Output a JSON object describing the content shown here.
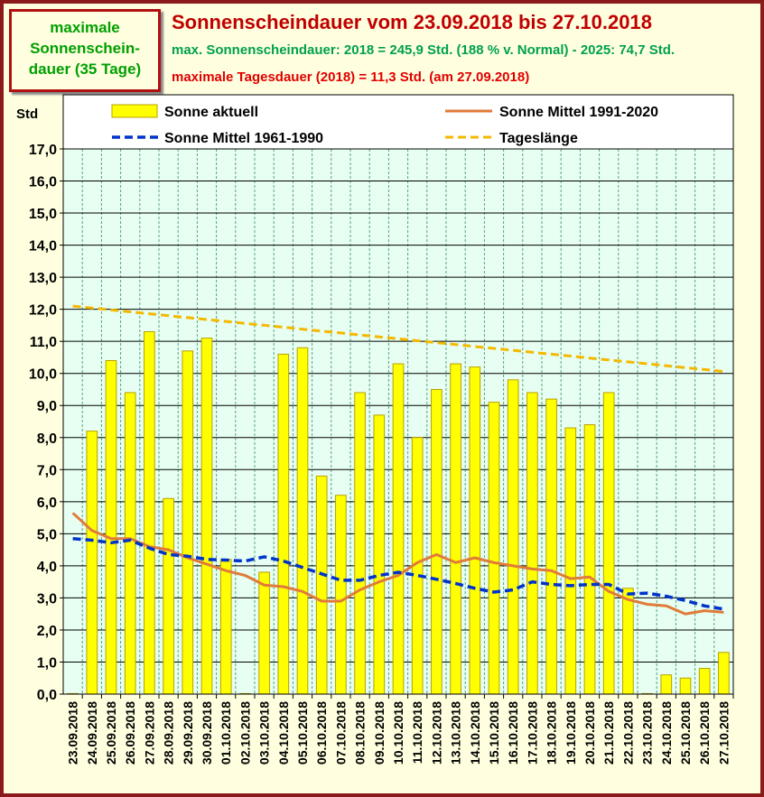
{
  "header": {
    "callout_lines": [
      "maximale",
      "Sonnenschein-",
      "dauer (35 Tage)"
    ],
    "title": "Sonnenscheindauer vom 23.09.2018 bis 27.10.2018",
    "subtitle_green": "max. Sonnenscheindauer: 2018 = 245,9 Std. (188 % v. Normal) - 2025: 74,7 Std.",
    "subtitle_red": "maximale Tagesdauer (2018) = 11,3 Std. (am 27.09.2018)"
  },
  "colors": {
    "bar_fill": "#ffff00",
    "bar_stroke": "#b8a000",
    "mean_1991": "#e07b39",
    "mean_1961": "#0033cc",
    "day_length": "#f5b800",
    "plot_bg": "#e6fff2",
    "grid": "#5fa07f"
  },
  "chart_data": {
    "type": "bar",
    "ylabel": "Std",
    "ylim": [
      0,
      17
    ],
    "ytick_step": 1,
    "ytick_labels": [
      "0,0",
      "1,0",
      "2,0",
      "3,0",
      "4,0",
      "5,0",
      "6,0",
      "7,0",
      "8,0",
      "9,0",
      "10,0",
      "11,0",
      "12,0",
      "13,0",
      "14,0",
      "15,0",
      "16,0",
      "17,0"
    ],
    "grid": true,
    "legend": [
      "Sonne aktuell",
      "Sonne Mittel 1991-2020",
      "Sonne Mittel 1961-1990",
      "Tageslänge"
    ],
    "categories": [
      "23.09.2018",
      "24.09.2018",
      "25.09.2018",
      "26.09.2018",
      "27.09.2018",
      "28.09.2018",
      "29.09.2018",
      "30.09.2018",
      "01.10.2018",
      "02.10.2018",
      "03.10.2018",
      "04.10.2018",
      "05.10.2018",
      "06.10.2018",
      "07.10.2018",
      "08.10.2018",
      "09.10.2018",
      "10.10.2018",
      "11.10.2018",
      "12.10.2018",
      "13.10.2018",
      "14.10.2018",
      "15.10.2018",
      "16.10.2018",
      "17.10.2018",
      "18.10.2018",
      "19.10.2018",
      "20.10.2018",
      "21.10.2018",
      "22.10.2018",
      "23.10.2018",
      "24.10.2018",
      "25.10.2018",
      "26.10.2018",
      "27.10.2018"
    ],
    "series": [
      {
        "name": "Sonne aktuell",
        "kind": "bar",
        "values": [
          0.0,
          8.2,
          10.4,
          9.4,
          11.3,
          6.1,
          10.7,
          11.1,
          4.2,
          0.0,
          3.8,
          10.6,
          10.8,
          6.8,
          6.2,
          9.4,
          8.7,
          10.3,
          8.0,
          9.5,
          10.3,
          10.2,
          9.1,
          9.8,
          9.4,
          9.2,
          8.3,
          8.4,
          9.4,
          3.3,
          0.0,
          0.6,
          0.5,
          0.8,
          1.3
        ]
      },
      {
        "name": "Sonne Mittel 1991-2020",
        "kind": "line",
        "values": [
          5.65,
          5.1,
          4.85,
          4.85,
          4.6,
          4.5,
          4.25,
          4.05,
          3.85,
          3.7,
          3.4,
          3.35,
          3.2,
          2.9,
          2.9,
          3.25,
          3.5,
          3.7,
          4.1,
          4.35,
          4.1,
          4.25,
          4.1,
          4.0,
          3.9,
          3.85,
          3.6,
          3.65,
          3.2,
          2.95,
          2.8,
          2.75,
          2.5,
          2.6,
          2.55
        ]
      },
      {
        "name": "Sonne Mittel 1961-1990",
        "kind": "dashed-line",
        "values": [
          4.85,
          4.8,
          4.72,
          4.8,
          4.55,
          4.35,
          4.3,
          4.2,
          4.18,
          4.15,
          4.28,
          4.15,
          3.95,
          3.75,
          3.55,
          3.55,
          3.7,
          3.8,
          3.7,
          3.58,
          3.45,
          3.3,
          3.18,
          3.25,
          3.5,
          3.42,
          3.38,
          3.42,
          3.42,
          3.12,
          3.15,
          3.05,
          2.92,
          2.75,
          2.65
        ]
      },
      {
        "name": "Tageslänge",
        "kind": "dashed-line",
        "values": [
          12.1,
          12.04,
          11.98,
          11.92,
          11.86,
          11.8,
          11.74,
          11.68,
          11.62,
          11.56,
          11.5,
          11.44,
          11.38,
          11.32,
          11.26,
          11.2,
          11.14,
          11.08,
          11.02,
          10.96,
          10.9,
          10.84,
          10.78,
          10.72,
          10.66,
          10.6,
          10.54,
          10.48,
          10.42,
          10.36,
          10.3,
          10.24,
          10.18,
          10.12,
          10.06
        ]
      }
    ]
  }
}
